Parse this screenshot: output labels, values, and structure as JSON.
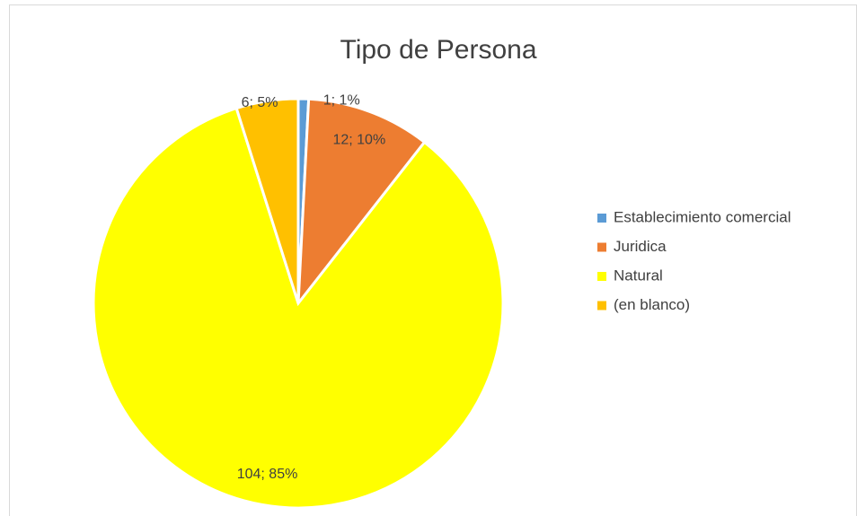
{
  "chart_data": {
    "type": "pie",
    "title": "Tipo de Persona",
    "categories": [
      "Establecimiento comercial",
      "Juridica",
      "Natural",
      "(en blanco)"
    ],
    "values": [
      1,
      12,
      104,
      6
    ],
    "value_labels": [
      "1; 1%",
      "12; 10%",
      "104; 85%",
      "6; 5%"
    ],
    "colors": [
      "#5b9bd5",
      "#ed7d31",
      "#ffff00",
      "#ffc000"
    ],
    "legend": "right"
  }
}
